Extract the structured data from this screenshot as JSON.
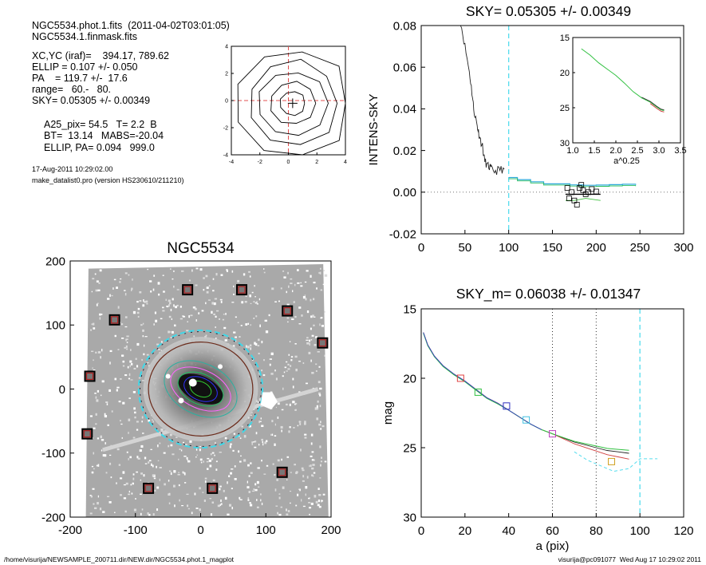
{
  "info": {
    "line1": "NGC5534.phot.1.fits  (2011-04-02T03:01:05)",
    "line2": "NGC5534.1.finmask.fits",
    "line3": "XC,YC (iraf)=    394.17, 789.62",
    "line4": "ELLIP = 0.107 +/- 0.050",
    "line5": "PA    = 119.7 +/-  17.6",
    "line6": "range=   60.-   80.",
    "line7": "SKY= 0.05305 +/- 0.00349",
    "line8": "A25_pix= 54.5   T= 2.2  B",
    "line9": "BT=  13.14   MABS=-20.04",
    "line10": "ELLIP, PA= 0.094   999.0",
    "date": "17-Aug-2011 10:29:02.00",
    "program": "make_datalist0.pro (version HS230610/211210)"
  },
  "footer": {
    "left": "/home/visurija/NEWSAMPLE_200711.dir/NEW.dir/NGC5534.phot.1_magplot",
    "right": "visurija@pc091077  Wed Aug 17 10:29:02 2011"
  },
  "chart_data": [
    {
      "id": "contour",
      "type": "contour",
      "xlim": [
        -4,
        4
      ],
      "ylim": [
        -4,
        4
      ],
      "xticks": [
        "-4",
        "-2",
        "0",
        "2",
        "4"
      ],
      "yticks": [
        "-4",
        "-2",
        "0",
        "2",
        "4"
      ],
      "contour_radii": [
        0.9,
        1.6,
        2.4,
        3.2,
        4.1
      ],
      "center": [
        0.3,
        -0.2
      ]
    },
    {
      "id": "image",
      "type": "image",
      "title": "NGC5534",
      "xlim": [
        -200,
        200
      ],
      "ylim": [
        -200,
        200
      ],
      "xticks": [
        "-200",
        "-100",
        "0",
        "100",
        "200"
      ],
      "yticks": [
        "200",
        "100",
        "0",
        "-100",
        "-200"
      ],
      "sky_boxes": [
        [
          -20,
          155
        ],
        [
          63,
          155
        ],
        [
          133,
          122
        ],
        [
          -132,
          108
        ],
        [
          187,
          72
        ],
        [
          -170,
          20
        ],
        [
          -174,
          -70
        ],
        [
          125,
          -130
        ],
        [
          -80,
          -155
        ],
        [
          18,
          -155
        ]
      ],
      "ellipse_semimajor": [
        90,
        80,
        60,
        45,
        30
      ]
    },
    {
      "id": "sky",
      "type": "line",
      "title": "SKY= 0.05305 +/- 0.00349",
      "ylabel": "INTENS-SKY",
      "xlim": [
        0,
        300
      ],
      "ylim": [
        -0.02,
        0.08
      ],
      "xticks": [
        "0",
        "50",
        "100",
        "150",
        "200",
        "250",
        "300"
      ],
      "yticks": [
        "0.08",
        "0.06",
        "0.04",
        "0.02",
        "0.00",
        "-0.02"
      ],
      "vline_x": 100,
      "profile": [
        [
          45,
          0.082
        ],
        [
          50,
          0.07
        ],
        [
          55,
          0.058
        ],
        [
          58,
          0.048
        ],
        [
          60,
          0.04
        ],
        [
          63,
          0.034
        ],
        [
          65,
          0.03
        ],
        [
          67,
          0.026
        ],
        [
          70,
          0.022
        ],
        [
          72,
          0.016
        ],
        [
          75,
          0.013
        ],
        [
          78,
          0.012
        ],
        [
          80,
          0.011
        ],
        [
          85,
          0.01
        ],
        [
          90,
          0.011
        ],
        [
          95,
          0.011
        ]
      ],
      "cyan_steps": [
        [
          100,
          0.007
        ],
        [
          110,
          0.006
        ],
        [
          125,
          0.005
        ],
        [
          140,
          0.004
        ],
        [
          155,
          0.004
        ],
        [
          170,
          0.0035
        ],
        [
          185,
          0.0033
        ],
        [
          200,
          0.0034
        ],
        [
          215,
          0.0036
        ],
        [
          230,
          0.0038
        ],
        [
          245,
          0.0035
        ]
      ],
      "sky_boxes": [
        [
          167,
          0.002
        ],
        [
          169,
          -0.003
        ],
        [
          172,
          0.0
        ],
        [
          175,
          -0.004
        ],
        [
          178,
          -0.006
        ],
        [
          181,
          0.002
        ],
        [
          183,
          0.0035
        ],
        [
          185,
          0.001
        ],
        [
          188,
          -0.001
        ],
        [
          191,
          0.0
        ],
        [
          195,
          0.0015
        ],
        [
          200,
          0.0003
        ]
      ],
      "inset": {
        "xlim": [
          1.0,
          3.5
        ],
        "ylim": [
          15,
          30
        ],
        "xticks": [
          "1.0",
          "1.5",
          "2.0",
          "2.5",
          "3.0",
          "3.5"
        ],
        "yticks": [
          "15",
          "20",
          "25",
          "30"
        ],
        "xlabel": "a^0.25",
        "profile": [
          [
            1.2,
            16.6
          ],
          [
            1.4,
            17.5
          ],
          [
            1.6,
            18.6
          ],
          [
            1.8,
            19.5
          ],
          [
            2.0,
            20.4
          ],
          [
            2.2,
            21.5
          ],
          [
            2.4,
            22.7
          ],
          [
            2.6,
            23.6
          ],
          [
            2.8,
            24.2
          ],
          [
            2.95,
            24.9
          ],
          [
            3.05,
            25.3
          ],
          [
            3.12,
            25.4
          ]
        ]
      }
    },
    {
      "id": "mag",
      "type": "line",
      "title": "SKY_m=  0.06038 +/- 0.01347",
      "xlabel": "a (pix)",
      "ylabel": "mag",
      "xlim": [
        0,
        120
      ],
      "ylim": [
        15,
        30
      ],
      "xticks": [
        "0",
        "20",
        "40",
        "60",
        "80",
        "100",
        "120"
      ],
      "yticks": [
        "15",
        "20",
        "25",
        "30"
      ],
      "vlines_dotted": [
        60,
        80
      ],
      "vline_dashed": 100,
      "profile": [
        [
          1,
          16.7
        ],
        [
          3,
          17.6
        ],
        [
          6,
          18.4
        ],
        [
          10,
          19.1
        ],
        [
          15,
          19.7
        ],
        [
          20,
          20.2
        ],
        [
          25,
          20.8
        ],
        [
          30,
          21.4
        ],
        [
          35,
          21.8
        ],
        [
          40,
          22.3
        ],
        [
          45,
          22.8
        ],
        [
          50,
          23.3
        ],
        [
          55,
          23.7
        ],
        [
          60,
          24.0
        ],
        [
          65,
          24.3
        ],
        [
          70,
          24.6
        ],
        [
          75,
          24.8
        ],
        [
          80,
          25.0
        ],
        [
          85,
          25.2
        ],
        [
          90,
          25.3
        ],
        [
          95,
          25.4
        ]
      ],
      "markers": [
        [
          18,
          20.0
        ],
        [
          26,
          21.0
        ],
        [
          39,
          22.0
        ],
        [
          48,
          23.0
        ],
        [
          60,
          24.0
        ],
        [
          87,
          26.0
        ]
      ]
    }
  ]
}
